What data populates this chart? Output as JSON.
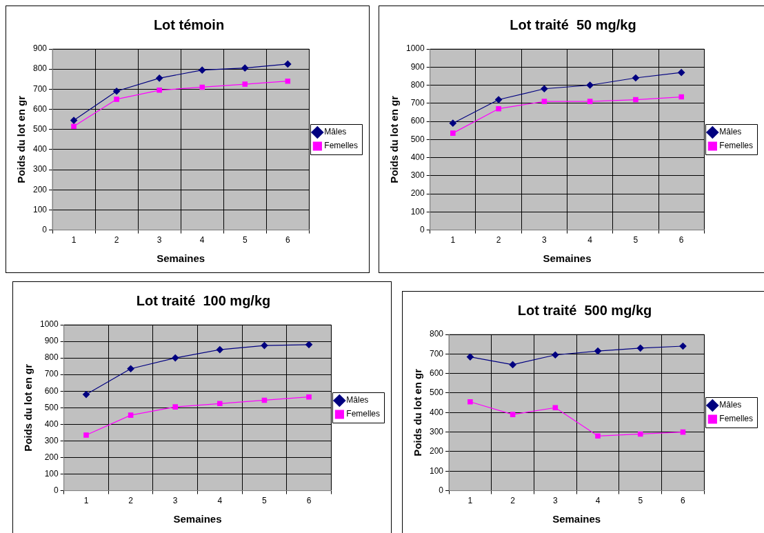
{
  "chart_data": [
    {
      "type": "line",
      "title": "Lot témoin",
      "xlabel": "Semaines",
      "ylabel": "Poids du lot en gr",
      "categories": [
        "1",
        "2",
        "3",
        "4",
        "5",
        "6"
      ],
      "ylim": [
        0,
        900
      ],
      "yticks": [
        0,
        100,
        200,
        300,
        400,
        500,
        600,
        700,
        800,
        900
      ],
      "grid": true,
      "legend": "right",
      "series": [
        {
          "name": "Mâles",
          "color": "#000080",
          "marker": "diamond",
          "values": [
            545,
            690,
            755,
            795,
            805,
            825
          ]
        },
        {
          "name": "Femelles",
          "color": "#ff00ff",
          "marker": "square",
          "values": [
            515,
            650,
            695,
            710,
            725,
            740
          ]
        }
      ]
    },
    {
      "type": "line",
      "title": "Lot traité  50 mg/kg",
      "xlabel": "Semaines",
      "ylabel": "Poids du lot en gr",
      "categories": [
        "1",
        "2",
        "3",
        "4",
        "5",
        "6"
      ],
      "ylim": [
        0,
        1000
      ],
      "yticks": [
        0,
        100,
        200,
        300,
        400,
        500,
        600,
        700,
        800,
        900,
        1000
      ],
      "grid": true,
      "legend": "right",
      "series": [
        {
          "name": "Mâles",
          "color": "#000080",
          "marker": "diamond",
          "values": [
            590,
            720,
            780,
            800,
            840,
            870
          ]
        },
        {
          "name": "Femelles",
          "color": "#ff00ff",
          "marker": "square",
          "values": [
            535,
            670,
            710,
            710,
            720,
            735
          ]
        }
      ]
    },
    {
      "type": "line",
      "title": "Lot traité  100 mg/kg",
      "xlabel": "Semaines",
      "ylabel": "Poids du lot en gr",
      "categories": [
        "1",
        "2",
        "3",
        "4",
        "5",
        "6"
      ],
      "ylim": [
        0,
        1000
      ],
      "yticks": [
        0,
        100,
        200,
        300,
        400,
        500,
        600,
        700,
        800,
        900,
        1000
      ],
      "grid": true,
      "legend": "right",
      "series": [
        {
          "name": "Mâles",
          "color": "#000080",
          "marker": "diamond",
          "values": [
            580,
            735,
            800,
            850,
            875,
            880
          ]
        },
        {
          "name": "Femelles",
          "color": "#ff00ff",
          "marker": "square",
          "values": [
            335,
            455,
            505,
            525,
            545,
            565
          ]
        }
      ]
    },
    {
      "type": "line",
      "title": "Lot traité  500 mg/kg",
      "xlabel": "Semaines",
      "ylabel": "Poids du lot en gr",
      "categories": [
        "1",
        "2",
        "3",
        "4",
        "5",
        "6"
      ],
      "ylim": [
        0,
        800
      ],
      "yticks": [
        0,
        100,
        200,
        300,
        400,
        500,
        600,
        700,
        800
      ],
      "grid": true,
      "legend": "right",
      "series": [
        {
          "name": "Mâles",
          "color": "#000080",
          "marker": "diamond",
          "values": [
            685,
            645,
            695,
            715,
            730,
            740
          ]
        },
        {
          "name": "Femelles",
          "color": "#ff00ff",
          "marker": "square",
          "values": [
            455,
            390,
            425,
            280,
            290,
            300
          ]
        }
      ]
    }
  ]
}
